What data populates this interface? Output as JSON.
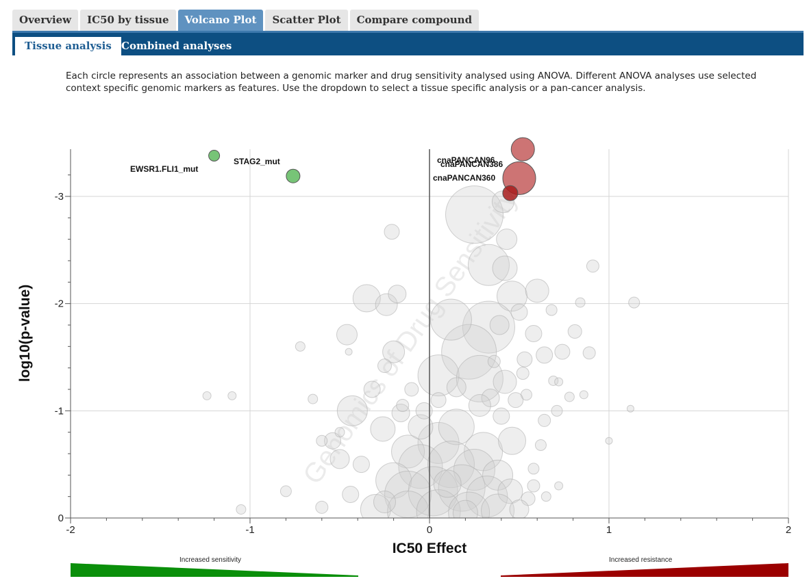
{
  "tabs": [
    {
      "label": "Overview"
    },
    {
      "label": "IC50 by tissue"
    },
    {
      "label": "Volcano Plot",
      "active": true
    },
    {
      "label": "Scatter Plot"
    },
    {
      "label": "Compare compound"
    }
  ],
  "subtabs": [
    {
      "label": "Tissue analysis",
      "active": true
    },
    {
      "label": "Combined analyses"
    }
  ],
  "description": {
    "line1": "Each circle represents an association between a genomic marker and drug sensitivity analysed using ANOVA. Different ANOVA analyses use selected",
    "line2": "context specific genomic markers as features. Use the dropdown to select a tissue specific analysis or a pan-cancer analysis."
  },
  "legend": {
    "sensitivity_label": "Increased sensitivity",
    "resistance_label": "Increased resistance",
    "sensitivity_color": "#0a8f0a",
    "resistance_color": "#9b0000"
  },
  "watermark": "Genomics of Drug Sensitivity",
  "chart_data": {
    "type": "scatter",
    "xlabel": "IC50 Effect",
    "ylabel": "log10(p-value)",
    "xlim": [
      -2,
      2
    ],
    "ylim": [
      0,
      -3.45
    ],
    "x_ticks": [
      "-2",
      "-1",
      "0",
      "1",
      "2"
    ],
    "y_ticks": [
      "0",
      "-1",
      "-2",
      "-3"
    ],
    "grid": true,
    "highlighted": [
      {
        "label": "EWSR1.FLI1_mut",
        "x": -1.2,
        "y": -3.38,
        "size": 8,
        "color": "#5fba5f"
      },
      {
        "label": "STAG2_mut",
        "x": -0.76,
        "y": -3.19,
        "size": 10,
        "color": "#5fba5f"
      },
      {
        "label": "cnaPANCAN96",
        "x": 0.52,
        "y": -3.44,
        "size": 17,
        "color": "#c45c5c"
      },
      {
        "label": "cnaPANCAN386",
        "x": 0.5,
        "y": -3.17,
        "size": 24,
        "color": "#c45c5c"
      },
      {
        "label": "cnaPANCAN360",
        "x": 0.45,
        "y": -3.03,
        "size": 11,
        "color": "#a81c1c"
      }
    ],
    "background": [
      {
        "x": 0.25,
        "y": -2.83,
        "size": 42
      },
      {
        "x": 0.33,
        "y": -2.36,
        "size": 30
      },
      {
        "x": 0.42,
        "y": -2.33,
        "size": 18
      },
      {
        "x": 0.41,
        "y": -2.95,
        "size": 16
      },
      {
        "x": 0.43,
        "y": -2.6,
        "size": 15
      },
      {
        "x": -0.21,
        "y": -2.67,
        "size": 11
      },
      {
        "x": 0.91,
        "y": -2.35,
        "size": 9
      },
      {
        "x": 1.14,
        "y": -2.01,
        "size": 8
      },
      {
        "x": -0.35,
        "y": -2.05,
        "size": 20
      },
      {
        "x": -0.24,
        "y": -1.99,
        "size": 16
      },
      {
        "x": -0.18,
        "y": -2.09,
        "size": 13
      },
      {
        "x": 0.46,
        "y": -2.07,
        "size": 22
      },
      {
        "x": 0.6,
        "y": -2.12,
        "size": 17
      },
      {
        "x": 0.33,
        "y": -1.78,
        "size": 38
      },
      {
        "x": 0.22,
        "y": -1.55,
        "size": 40
      },
      {
        "x": 0.12,
        "y": -1.85,
        "size": 30
      },
      {
        "x": 0.5,
        "y": -1.92,
        "size": 12
      },
      {
        "x": 0.39,
        "y": -1.8,
        "size": 14
      },
      {
        "x": 0.68,
        "y": -1.94,
        "size": 8
      },
      {
        "x": 0.84,
        "y": -2.01,
        "size": 7
      },
      {
        "x": 0.58,
        "y": -1.72,
        "size": 12
      },
      {
        "x": 0.81,
        "y": -1.74,
        "size": 10
      },
      {
        "x": -0.46,
        "y": -1.71,
        "size": 15
      },
      {
        "x": -0.2,
        "y": -1.55,
        "size": 16
      },
      {
        "x": 0.05,
        "y": -1.33,
        "size": 30
      },
      {
        "x": 0.28,
        "y": -1.3,
        "size": 34
      },
      {
        "x": 0.36,
        "y": -1.46,
        "size": 9
      },
      {
        "x": 0.53,
        "y": -1.48,
        "size": 11
      },
      {
        "x": 0.64,
        "y": -1.52,
        "size": 12
      },
      {
        "x": 0.74,
        "y": -1.55,
        "size": 11
      },
      {
        "x": 0.89,
        "y": -1.54,
        "size": 9
      },
      {
        "x": -0.72,
        "y": -1.6,
        "size": 7
      },
      {
        "x": -0.45,
        "y": -1.55,
        "size": 5
      },
      {
        "x": 0.69,
        "y": -1.28,
        "size": 7
      },
      {
        "x": 0.72,
        "y": -1.27,
        "size": 6
      },
      {
        "x": 0.34,
        "y": -1.12,
        "size": 13
      },
      {
        "x": 0.42,
        "y": -1.27,
        "size": 17
      },
      {
        "x": -0.43,
        "y": -1.0,
        "size": 22
      },
      {
        "x": -0.16,
        "y": -0.98,
        "size": 13
      },
      {
        "x": -1.24,
        "y": -1.14,
        "size": 6
      },
      {
        "x": -1.1,
        "y": -1.14,
        "size": 6
      },
      {
        "x": -0.65,
        "y": -1.11,
        "size": 7
      },
      {
        "x": 0.54,
        "y": -1.15,
        "size": 8
      },
      {
        "x": 0.71,
        "y": -1.0,
        "size": 8
      },
      {
        "x": 0.64,
        "y": -0.91,
        "size": 9
      },
      {
        "x": 0.78,
        "y": -1.13,
        "size": 7
      },
      {
        "x": 0.86,
        "y": -1.15,
        "size": 6
      },
      {
        "x": 1.12,
        "y": -1.02,
        "size": 5
      },
      {
        "x": 1.0,
        "y": -0.72,
        "size": 5
      },
      {
        "x": -0.26,
        "y": -0.83,
        "size": 18
      },
      {
        "x": -0.54,
        "y": -0.72,
        "size": 12
      },
      {
        "x": 0.05,
        "y": -0.7,
        "size": 30
      },
      {
        "x": 0.15,
        "y": -0.85,
        "size": 26
      },
      {
        "x": 0.3,
        "y": -0.62,
        "size": 28
      },
      {
        "x": 0.46,
        "y": -0.72,
        "size": 20
      },
      {
        "x": -0.12,
        "y": -0.62,
        "size": 24
      },
      {
        "x": 0.62,
        "y": -0.68,
        "size": 8
      },
      {
        "x": 0.58,
        "y": -0.46,
        "size": 8
      },
      {
        "x": -0.5,
        "y": -0.55,
        "size": 14
      },
      {
        "x": -0.38,
        "y": -0.5,
        "size": 12
      },
      {
        "x": -0.05,
        "y": -0.48,
        "size": 32
      },
      {
        "x": 0.12,
        "y": -0.5,
        "size": 34
      },
      {
        "x": 0.25,
        "y": -0.45,
        "size": 30
      },
      {
        "x": 0.38,
        "y": -0.4,
        "size": 22
      },
      {
        "x": -0.2,
        "y": -0.35,
        "size": 26
      },
      {
        "x": -0.8,
        "y": -0.25,
        "size": 8
      },
      {
        "x": -0.44,
        "y": -0.22,
        "size": 12
      },
      {
        "x": -0.12,
        "y": -0.22,
        "size": 34
      },
      {
        "x": 0.02,
        "y": -0.25,
        "size": 36
      },
      {
        "x": 0.18,
        "y": -0.28,
        "size": 34
      },
      {
        "x": 0.32,
        "y": -0.2,
        "size": 30
      },
      {
        "x": 0.45,
        "y": -0.25,
        "size": 18
      },
      {
        "x": 0.55,
        "y": -0.18,
        "size": 10
      },
      {
        "x": -1.05,
        "y": -0.08,
        "size": 7
      },
      {
        "x": -0.6,
        "y": -0.1,
        "size": 9
      },
      {
        "x": -0.3,
        "y": -0.08,
        "size": 22
      },
      {
        "x": -0.12,
        "y": -0.06,
        "size": 30
      },
      {
        "x": 0.05,
        "y": -0.06,
        "size": 32
      },
      {
        "x": 0.22,
        "y": -0.05,
        "size": 30
      },
      {
        "x": 0.38,
        "y": -0.07,
        "size": 24
      },
      {
        "x": 0.5,
        "y": -0.08,
        "size": 14
      },
      {
        "x": -0.25,
        "y": -0.15,
        "size": 16
      },
      {
        "x": 0.1,
        "y": -0.32,
        "size": 20
      },
      {
        "x": -0.05,
        "y": -0.85,
        "size": 18
      },
      {
        "x": 0.28,
        "y": -1.05,
        "size": 16
      },
      {
        "x": -0.32,
        "y": -1.2,
        "size": 12
      },
      {
        "x": -0.1,
        "y": -1.2,
        "size": 10
      },
      {
        "x": -0.25,
        "y": -1.42,
        "size": 10
      },
      {
        "x": 0.48,
        "y": -1.1,
        "size": 11
      },
      {
        "x": 0.4,
        "y": -0.95,
        "size": 12
      },
      {
        "x": 0.58,
        "y": -0.3,
        "size": 9
      },
      {
        "x": 0.65,
        "y": -0.2,
        "size": 7
      },
      {
        "x": -0.6,
        "y": -0.72,
        "size": 8
      },
      {
        "x": -0.5,
        "y": -0.8,
        "size": 7
      },
      {
        "x": 0.72,
        "y": -0.3,
        "size": 6
      },
      {
        "x": 0.52,
        "y": -1.35,
        "size": 9
      },
      {
        "x": -0.15,
        "y": -1.05,
        "size": 9
      },
      {
        "x": 0.05,
        "y": -1.1,
        "size": 11
      },
      {
        "x": 0.15,
        "y": -1.22,
        "size": 14
      },
      {
        "x": -0.03,
        "y": -1.0,
        "size": 12
      },
      {
        "x": 0.2,
        "y": -0.05,
        "size": 18
      }
    ]
  }
}
